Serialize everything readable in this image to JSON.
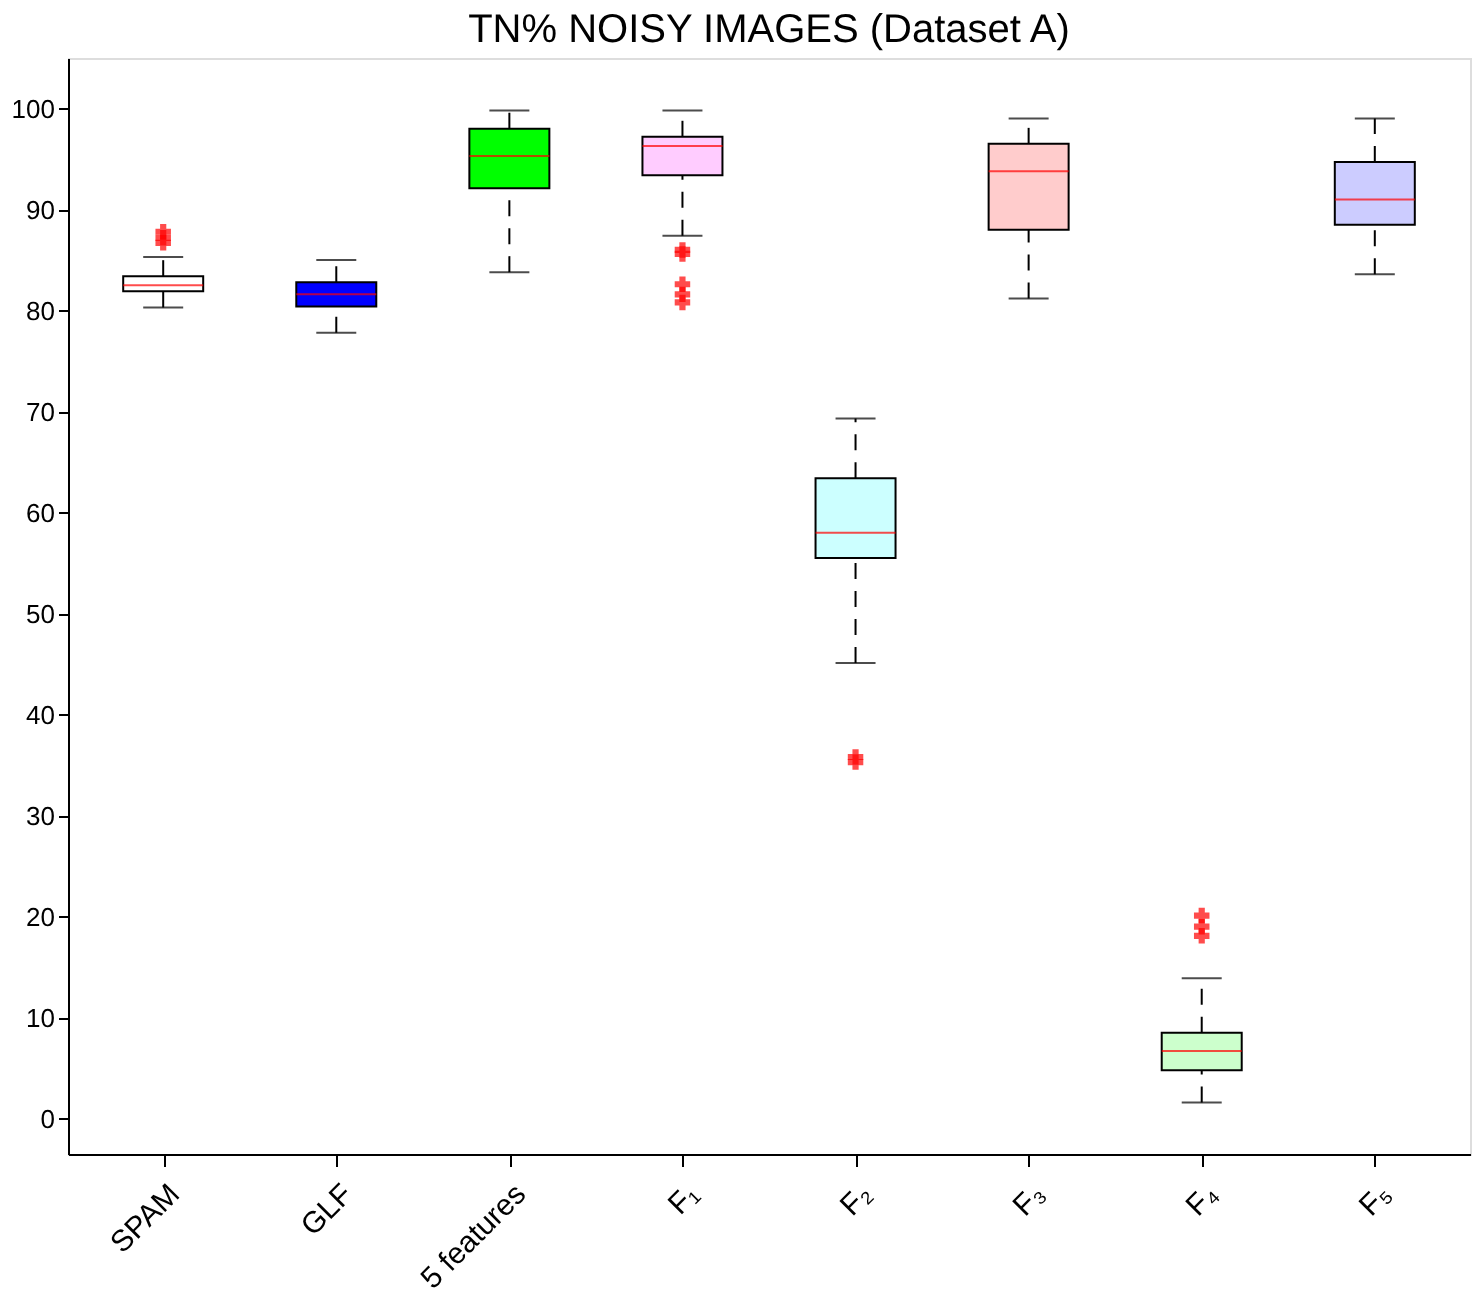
{
  "chart_data": {
    "type": "box",
    "title": "TN% NOISY IMAGES (Dataset A)",
    "categories": [
      "SPAM",
      "GLF",
      "5 features",
      "F₁",
      "F₂",
      "F₃",
      "F₄",
      "F₅"
    ],
    "colors": [
      "#ffffff",
      "#0000ff",
      "#00ff00",
      "#ffccff",
      "#ccffff",
      "#ffcccc",
      "#ccffcc",
      "#ccccff"
    ],
    "boxes": [
      {
        "low": 80.3,
        "q1": 81.9,
        "median": 82.5,
        "q3": 83.4,
        "high": 85.3,
        "outliers": [
          87.8,
          87.2,
          86.7
        ]
      },
      {
        "low": 77.8,
        "q1": 80.4,
        "median": 81.6,
        "q3": 82.8,
        "high": 85.0
      },
      {
        "low": 83.8,
        "q1": 92.1,
        "median": 95.3,
        "q3": 98.0,
        "high": 99.8
      },
      {
        "low": 87.4,
        "q1": 93.4,
        "median": 96.3,
        "q3": 97.2,
        "high": 99.8,
        "outliers": [
          86.0,
          85.6,
          82.6,
          81.6,
          80.8
        ]
      },
      {
        "low": 45.1,
        "q1": 55.5,
        "median": 58.0,
        "q3": 63.4,
        "high": 69.3,
        "outliers": [
          35.8,
          35.3
        ]
      },
      {
        "low": 81.2,
        "q1": 88.0,
        "median": 93.8,
        "q3": 96.5,
        "high": 99.0
      },
      {
        "low": 1.6,
        "q1": 4.8,
        "median": 6.7,
        "q3": 8.5,
        "high": 13.9,
        "outliers": [
          20.1,
          19.0,
          18.1
        ]
      },
      {
        "low": 83.6,
        "q1": 88.5,
        "median": 91.0,
        "q3": 94.7,
        "high": 99.0
      }
    ],
    "ylim": [
      -3.5,
      105
    ],
    "yticks": [
      0,
      10,
      20,
      30,
      40,
      50,
      60,
      70,
      80,
      90,
      100
    ],
    "grid": false
  }
}
